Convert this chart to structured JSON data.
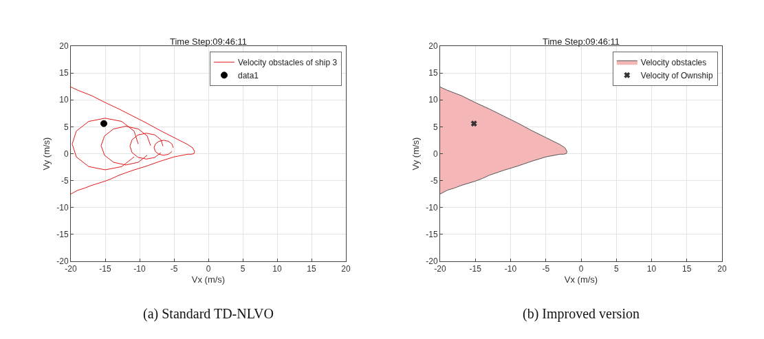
{
  "chart_data": [
    {
      "type": "line",
      "title": "Time Step:09:46:11",
      "xlabel": "Vx (m/s)",
      "ylabel": "Vy (m/s)",
      "xlim": [
        -20,
        20
      ],
      "ylim": [
        -20,
        20
      ],
      "xticks": [
        -20,
        -15,
        -10,
        -5,
        0,
        5,
        10,
        15,
        20
      ],
      "yticks": [
        -20,
        -15,
        -10,
        -5,
        0,
        5,
        10,
        15,
        20
      ],
      "grid": true,
      "legend": "top right",
      "annotations": [
        "(a) Standard TD-NLVO"
      ],
      "series": [
        {
          "name": "Velocity obstacles of ship 3",
          "color": "#e31a1c",
          "x": [
            -20,
            -19,
            -17,
            -15,
            -13,
            -11,
            -9,
            -7,
            -5,
            -3,
            -2.3,
            -2,
            -2.1,
            -2.5,
            -3,
            -5,
            -7,
            -9,
            -11,
            -13,
            -14,
            -15,
            -17,
            -18,
            -19,
            -20
          ],
          "values": [
            12.4,
            11.8,
            10.8,
            9.5,
            8.3,
            7,
            5.7,
            4.3,
            3,
            1.7,
            1.1,
            0.4,
            0,
            -0.1,
            -0.1,
            -0.6,
            -1.4,
            -2.3,
            -3.1,
            -4,
            -4.6,
            -5.1,
            -5.9,
            -6.4,
            -6.8,
            -7.5
          ]
        },
        {
          "color": "#e31a1c",
          "x": [
            -10.2,
            -10.8,
            -12.6,
            -15,
            -17.4,
            -19.2,
            -19.8,
            -19.2,
            -17.4,
            -15,
            -12.6,
            -10.8
          ],
          "values": [
            1.8,
            4.2,
            6,
            6.6,
            6,
            4.2,
            1.8,
            -0.6,
            -2.4,
            -3,
            -2.4,
            -0.6
          ]
        },
        {
          "color": "#e31a1c",
          "x": [
            -8.4,
            -8.9,
            -10.2,
            -12,
            -13.8,
            -15.1,
            -15.6,
            -15.1,
            -13.8,
            -12,
            -10.2,
            -8.9
          ],
          "values": [
            1.5,
            3.3,
            4.6,
            5.1,
            4.6,
            3.3,
            1.5,
            -0.3,
            -1.6,
            -2.1,
            -1.6,
            -0.3
          ]
        },
        {
          "color": "#e31a1c",
          "x": [
            -6.6,
            -6.9,
            -7.8,
            -9,
            -10.2,
            -11.1,
            -11.4,
            -11.1,
            -10.2,
            -9,
            -7.8,
            -6.9
          ],
          "values": [
            1.4,
            2.6,
            3.5,
            3.8,
            3.5,
            2.6,
            1.4,
            0.2,
            -0.7,
            -1,
            -0.7,
            0.2
          ]
        },
        {
          "color": "#e31a1c",
          "x": [
            -5.1,
            -5.3,
            -5.8,
            -6.5,
            -7.2,
            -7.7,
            -7.9,
            -7.7,
            -7.2,
            -6.5,
            -5.8,
            -5.3
          ],
          "values": [
            1.1,
            1.8,
            2.3,
            2.5,
            2.3,
            1.8,
            1.1,
            0.4,
            -0.1,
            -0.3,
            -0.1,
            0.4
          ]
        },
        {
          "name": "data1",
          "type": "scatter",
          "color": "#000000",
          "marker": "circle",
          "x": [
            -15.2
          ],
          "values": [
            5.6
          ]
        }
      ]
    },
    {
      "type": "area",
      "title": "Time Step:09:46:11",
      "xlabel": "Vx (m/s)",
      "ylabel": "Vy (m/s)",
      "xlim": [
        -20,
        20
      ],
      "ylim": [
        -20,
        20
      ],
      "xticks": [
        -20,
        -15,
        -10,
        -5,
        0,
        5,
        10,
        15,
        20
      ],
      "yticks": [
        -20,
        -15,
        -10,
        -5,
        0,
        5,
        10,
        15,
        20
      ],
      "grid": true,
      "legend": "top right",
      "annotations": [
        "(b) Improved version"
      ],
      "series": [
        {
          "name": "Velocity obstacles",
          "color": "#f4b6b6",
          "x": [
            -20,
            -19,
            -17,
            -15,
            -13,
            -11,
            -9,
            -7,
            -5,
            -3,
            -2.3,
            -2,
            -2.1,
            -2.5,
            -3,
            -5,
            -7,
            -9,
            -11,
            -13,
            -14,
            -15,
            -17,
            -18,
            -19,
            -20
          ],
          "values": [
            12.4,
            11.8,
            10.8,
            9.5,
            8.3,
            7,
            5.7,
            4.3,
            3,
            1.7,
            1.1,
            0.4,
            0,
            -0.1,
            -0.1,
            -0.6,
            -1.4,
            -2.3,
            -3.1,
            -4,
            -4.6,
            -5.1,
            -5.9,
            -6.4,
            -6.8,
            -7.5
          ]
        },
        {
          "name": "Velocity of Ownship",
          "type": "scatter",
          "color": "#333333",
          "marker": "cross",
          "x": [
            -15.2
          ],
          "values": [
            5.6
          ]
        }
      ]
    }
  ]
}
